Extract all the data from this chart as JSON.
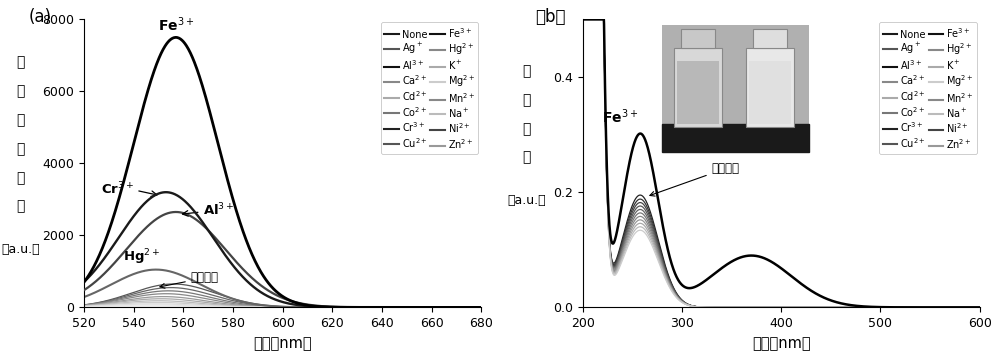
{
  "panel_a": {
    "xlabel": "波长（nm）",
    "ylabel_chars": [
      "荧",
      "光",
      "发",
      "射",
      "强",
      "度"
    ],
    "ylabel_unit": "（a.u.）",
    "xlim": [
      520,
      680
    ],
    "ylim": [
      0,
      8000
    ],
    "yticks": [
      0,
      2000,
      4000,
      6000,
      8000
    ],
    "xticks": [
      520,
      540,
      560,
      580,
      600,
      620,
      640,
      660,
      680
    ]
  },
  "panel_b": {
    "xlabel": "波长（nm）",
    "ylabel_chars": [
      "吸",
      "收",
      "强",
      "度"
    ],
    "ylabel_unit": "（a.u.）",
    "xlim": [
      200,
      600
    ],
    "ylim": [
      0,
      0.5
    ],
    "yticks": [
      0.0,
      0.2,
      0.4
    ],
    "xticks": [
      200,
      300,
      400,
      500,
      600
    ]
  },
  "legend_col1_labels": [
    "None",
    "Ag$^+$",
    "Al$^{3+}$",
    "Ca$^{2+}$",
    "Cd$^{2+}$",
    "Co$^{2+}$",
    "Cr$^{3+}$",
    "Cu$^{2+}$",
    "Fe$^{3+}$",
    "Hg$^{2+}$"
  ],
  "legend_col2_labels": [
    "K$^+$",
    "Mg$^{2+}$",
    "Mn$^{2+}$",
    "Na$^+$",
    "Ni$^{2+}$",
    "Zn$^{2+}$"
  ],
  "legend_col1_colors": [
    "#1a1a1a",
    "#444444",
    "#111111",
    "#888888",
    "#aaaaaa",
    "#999999",
    "#222222",
    "#555555",
    "#000000",
    "#777777"
  ],
  "legend_col2_colors": [
    "#aaaaaa",
    "#cccccc",
    "#888888",
    "#bbbbbb",
    "#333333",
    "#999999"
  ]
}
